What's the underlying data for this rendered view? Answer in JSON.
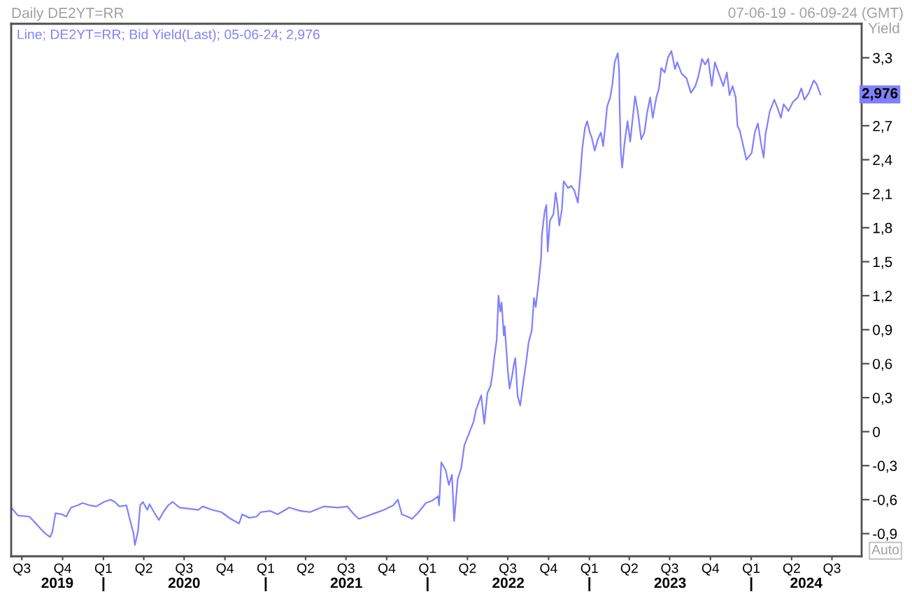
{
  "chart_data": {
    "type": "line",
    "title": "Daily DE2YT=RR",
    "subtitle": "07-06-19 - 06-09-24 (GMT)",
    "ylabel": "Yield",
    "series": [
      {
        "name": "Line; DE2YT=RR; Bid Yield(Last); 05-06-24; 2,976",
        "color": "#8080ff",
        "x": [
          "2019-06-07",
          "2019-06-22",
          "2019-07-18",
          "2019-07-28",
          "2019-08-13",
          "2019-08-23",
          "2019-09-03",
          "2019-09-08",
          "2019-09-15",
          "2019-09-30",
          "2019-10-09",
          "2019-10-20",
          "2019-11-04",
          "2019-11-15",
          "2019-12-01",
          "2019-12-16",
          "2020-01-02",
          "2020-01-17",
          "2020-01-27",
          "2020-02-06",
          "2020-02-22",
          "2020-02-28",
          "2020-03-09",
          "2020-03-12",
          "2020-03-19",
          "2020-03-24",
          "2020-03-30",
          "2020-04-09",
          "2020-04-14",
          "2020-04-24",
          "2020-05-05",
          "2020-05-15",
          "2020-05-26",
          "2020-06-05",
          "2020-06-21",
          "2020-07-12",
          "2020-08-02",
          "2020-08-12",
          "2020-09-02",
          "2020-09-23",
          "2020-10-14",
          "2020-11-02",
          "2020-11-09",
          "2020-11-25",
          "2020-12-11",
          "2020-12-21",
          "2021-01-12",
          "2021-01-28",
          "2021-02-23",
          "2021-03-21",
          "2021-04-11",
          "2021-05-12",
          "2021-06-13",
          "2021-07-04",
          "2021-07-19",
          "2021-07-30",
          "2021-08-14",
          "2021-09-04",
          "2021-09-25",
          "2021-10-16",
          "2021-10-26",
          "2021-11-04",
          "2021-11-17",
          "2021-11-27",
          "2021-12-12",
          "2021-12-28",
          "2022-01-11",
          "2022-01-25",
          "2022-01-27",
          "2022-02-01",
          "2022-02-11",
          "2022-02-18",
          "2022-02-25",
          "2022-03-02",
          "2022-03-10",
          "2022-03-18",
          "2022-03-25",
          "2022-04-05",
          "2022-04-15",
          "2022-04-20",
          "2022-05-02",
          "2022-05-09",
          "2022-05-16",
          "2022-05-23",
          "2022-05-27",
          "2022-06-01",
          "2022-06-06",
          "2022-06-10",
          "2022-06-14",
          "2022-06-17",
          "2022-06-22",
          "2022-06-24",
          "2022-07-01",
          "2022-07-05",
          "2022-07-11",
          "2022-07-15",
          "2022-07-18",
          "2022-07-23",
          "2022-07-29",
          "2022-08-05",
          "2022-08-11",
          "2022-08-17",
          "2022-08-24",
          "2022-08-29",
          "2022-09-02",
          "2022-09-08",
          "2022-09-14",
          "2022-09-16",
          "2022-09-22",
          "2022-09-26",
          "2022-09-29",
          "2022-10-04",
          "2022-10-12",
          "2022-10-17",
          "2022-10-21",
          "2022-10-25",
          "2022-10-31",
          "2022-11-04",
          "2022-11-14",
          "2022-11-21",
          "2022-11-28",
          "2022-12-06",
          "2022-12-12",
          "2022-12-16",
          "2022-12-22",
          "2022-12-27",
          "2023-01-02",
          "2023-01-06",
          "2023-01-13",
          "2023-01-20",
          "2023-01-27",
          "2023-02-01",
          "2023-02-06",
          "2023-02-10",
          "2023-02-17",
          "2023-02-22",
          "2023-02-27",
          "2023-03-06",
          "2023-03-09",
          "2023-03-10",
          "2023-03-13",
          "2023-03-16",
          "2023-03-21",
          "2023-03-28",
          "2023-04-03",
          "2023-04-11",
          "2023-04-14",
          "2023-04-20",
          "2023-04-28",
          "2023-05-05",
          "2023-05-11",
          "2023-05-18",
          "2023-05-24",
          "2023-06-01",
          "2023-06-07",
          "2023-06-12",
          "2023-06-20",
          "2023-06-27",
          "2023-07-05",
          "2023-07-13",
          "2023-07-18",
          "2023-07-28",
          "2023-08-08",
          "2023-08-18",
          "2023-08-28",
          "2023-09-04",
          "2023-09-12",
          "2023-09-19",
          "2023-09-26",
          "2023-10-04",
          "2023-10-11",
          "2023-10-20",
          "2023-10-30",
          "2023-11-07",
          "2023-11-13",
          "2023-11-20",
          "2023-11-27",
          "2023-12-01",
          "2023-12-06",
          "2023-12-13",
          "2023-12-21",
          "2024-01-02",
          "2024-01-09",
          "2024-01-16",
          "2024-01-24",
          "2024-01-29",
          "2024-02-02",
          "2024-02-12",
          "2024-02-22",
          "2024-03-01",
          "2024-03-08",
          "2024-03-14",
          "2024-03-25",
          "2024-04-04",
          "2024-04-15",
          "2024-04-23",
          "2024-04-30",
          "2024-05-10",
          "2024-05-21",
          "2024-05-27",
          "2024-06-05"
        ],
        "values": [
          -0.67,
          -0.74,
          -0.75,
          -0.79,
          -0.86,
          -0.9,
          -0.93,
          -0.88,
          -0.72,
          -0.73,
          -0.75,
          -0.67,
          -0.65,
          -0.63,
          -0.65,
          -0.66,
          -0.62,
          -0.6,
          -0.62,
          -0.66,
          -0.65,
          -0.75,
          -0.9,
          -1.0,
          -0.88,
          -0.65,
          -0.62,
          -0.69,
          -0.64,
          -0.71,
          -0.78,
          -0.71,
          -0.65,
          -0.62,
          -0.67,
          -0.68,
          -0.69,
          -0.66,
          -0.69,
          -0.71,
          -0.77,
          -0.81,
          -0.73,
          -0.76,
          -0.75,
          -0.71,
          -0.7,
          -0.73,
          -0.67,
          -0.7,
          -0.71,
          -0.66,
          -0.67,
          -0.66,
          -0.73,
          -0.77,
          -0.75,
          -0.72,
          -0.69,
          -0.65,
          -0.6,
          -0.73,
          -0.75,
          -0.77,
          -0.71,
          -0.63,
          -0.61,
          -0.57,
          -0.65,
          -0.27,
          -0.34,
          -0.47,
          -0.38,
          -0.79,
          -0.42,
          -0.32,
          -0.12,
          -0.01,
          0.09,
          0.19,
          0.32,
          0.07,
          0.34,
          0.4,
          0.5,
          0.67,
          0.81,
          1.2,
          1.06,
          1.14,
          0.85,
          0.93,
          0.54,
          0.38,
          0.5,
          0.6,
          0.65,
          0.32,
          0.23,
          0.44,
          0.6,
          0.79,
          0.89,
          1.18,
          1.1,
          1.3,
          1.53,
          1.74,
          1.94,
          2.0,
          1.59,
          1.86,
          1.92,
          2.11,
          2.0,
          1.82,
          1.96,
          2.21,
          2.15,
          2.17,
          2.13,
          2.02,
          2.29,
          2.5,
          2.68,
          2.74,
          2.64,
          2.6,
          2.48,
          2.58,
          2.64,
          2.52,
          2.7,
          2.87,
          2.95,
          3.07,
          3.26,
          3.34,
          3.2,
          2.91,
          2.46,
          2.33,
          2.54,
          2.74,
          2.56,
          2.85,
          2.96,
          2.83,
          2.58,
          2.64,
          2.81,
          2.95,
          2.77,
          2.95,
          3.03,
          3.21,
          3.17,
          3.3,
          3.36,
          3.2,
          3.26,
          3.16,
          3.12,
          2.99,
          3.05,
          3.14,
          3.29,
          3.24,
          3.29,
          3.05,
          3.26,
          3.16,
          3.05,
          3.17,
          2.97,
          3.05,
          2.95,
          2.7,
          2.66,
          2.54,
          2.4,
          2.46,
          2.64,
          2.72,
          2.52,
          2.42,
          2.62,
          2.83,
          2.93,
          2.85,
          2.77,
          2.89,
          2.83,
          2.91,
          2.95,
          3.03,
          2.93,
          2.99,
          3.1,
          3.07,
          2.976
        ]
      }
    ],
    "xlim": [
      "2019-06-07",
      "2024-09-06"
    ],
    "xticks": [
      {
        "value": "2019-07-01",
        "label": "Q3"
      },
      {
        "value": "2019-10-01",
        "label": "Q4"
      },
      {
        "value": "2020-01-01",
        "label": "Q1"
      },
      {
        "value": "2020-04-01",
        "label": "Q2"
      },
      {
        "value": "2020-07-01",
        "label": "Q3"
      },
      {
        "value": "2020-10-01",
        "label": "Q4"
      },
      {
        "value": "2021-01-01",
        "label": "Q1"
      },
      {
        "value": "2021-04-01",
        "label": "Q2"
      },
      {
        "value": "2021-07-01",
        "label": "Q3"
      },
      {
        "value": "2021-10-01",
        "label": "Q4"
      },
      {
        "value": "2022-01-01",
        "label": "Q1"
      },
      {
        "value": "2022-04-01",
        "label": "Q2"
      },
      {
        "value": "2022-07-01",
        "label": "Q3"
      },
      {
        "value": "2022-10-01",
        "label": "Q4"
      },
      {
        "value": "2023-01-01",
        "label": "Q1"
      },
      {
        "value": "2023-04-01",
        "label": "Q2"
      },
      {
        "value": "2023-07-01",
        "label": "Q3"
      },
      {
        "value": "2023-10-01",
        "label": "Q4"
      },
      {
        "value": "2024-01-01",
        "label": "Q1"
      },
      {
        "value": "2024-04-01",
        "label": "Q2"
      },
      {
        "value": "2024-07-01",
        "label": "Q3"
      }
    ],
    "x2lim": [
      "2019-06-07",
      "2024-09-06"
    ],
    "x2ticks": [
      {
        "value": "2019-09-19",
        "label": "2019"
      },
      {
        "value": "2020-01-01",
        "label": null
      },
      {
        "value": "2020-07-01",
        "label": "2020"
      },
      {
        "value": "2021-01-01",
        "label": null
      },
      {
        "value": "2021-07-02",
        "label": "2021"
      },
      {
        "value": "2022-01-01",
        "label": null
      },
      {
        "value": "2022-07-02",
        "label": "2022"
      },
      {
        "value": "2023-01-01",
        "label": null
      },
      {
        "value": "2023-07-02",
        "label": "2023"
      },
      {
        "value": "2024-01-01",
        "label": null
      },
      {
        "value": "2024-05-04",
        "label": "2024"
      }
    ],
    "ylim": [
      -1.1,
      3.6
    ],
    "yticks": [
      {
        "value": 3.3,
        "label": "3,3"
      },
      {
        "value": 2.7,
        "label": "2,7"
      },
      {
        "value": 2.4,
        "label": "2,4"
      },
      {
        "value": 2.1,
        "label": "2,1"
      },
      {
        "value": 1.8,
        "label": "1,8"
      },
      {
        "value": 1.5,
        "label": "1,5"
      },
      {
        "value": 1.2,
        "label": "1,2"
      },
      {
        "value": 0.9,
        "label": "0,9"
      },
      {
        "value": 0.6,
        "label": "0,6"
      },
      {
        "value": 0.3,
        "label": "0,3"
      },
      0,
      {
        "value": -0.3,
        "label": "-0,3"
      },
      {
        "value": -0.6,
        "label": "-0,6"
      },
      {
        "value": -0.9,
        "label": "-0,9"
      }
    ],
    "legend": "top left",
    "annotations": [
      "2,976",
      "Auto"
    ]
  }
}
